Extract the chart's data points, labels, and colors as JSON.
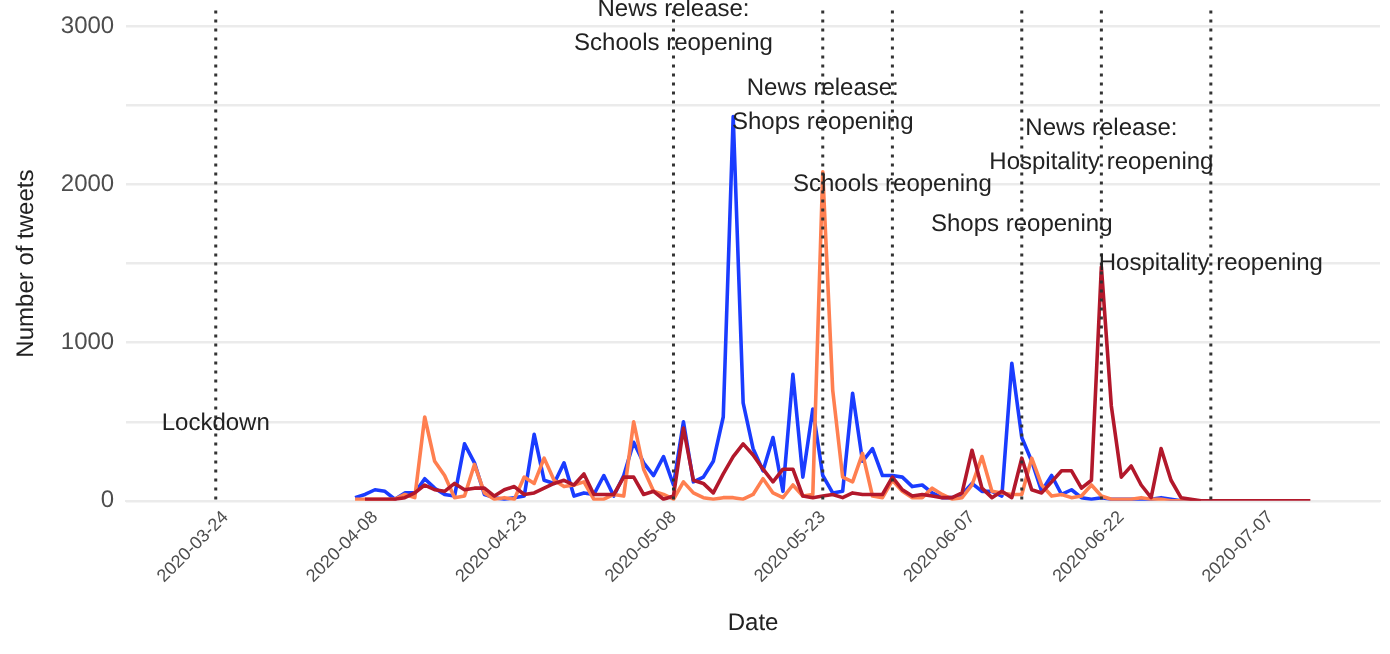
{
  "chart_data": {
    "type": "line",
    "xlabel": "Date",
    "ylabel": "Number of tweets",
    "x": [
      "2020-04-06",
      "2020-04-07",
      "2020-04-08",
      "2020-04-09",
      "2020-04-10",
      "2020-04-11",
      "2020-04-12",
      "2020-04-13",
      "2020-04-14",
      "2020-04-15",
      "2020-04-16",
      "2020-04-17",
      "2020-04-18",
      "2020-04-19",
      "2020-04-20",
      "2020-04-21",
      "2020-04-22",
      "2020-04-23",
      "2020-04-24",
      "2020-04-25",
      "2020-04-26",
      "2020-04-27",
      "2020-04-28",
      "2020-04-29",
      "2020-04-30",
      "2020-05-01",
      "2020-05-02",
      "2020-05-03",
      "2020-05-04",
      "2020-05-05",
      "2020-05-06",
      "2020-05-07",
      "2020-05-08",
      "2020-05-09",
      "2020-05-10",
      "2020-05-11",
      "2020-05-12",
      "2020-05-13",
      "2020-05-14",
      "2020-05-15",
      "2020-05-16",
      "2020-05-17",
      "2020-05-18",
      "2020-05-19",
      "2020-05-20",
      "2020-05-21",
      "2020-05-22",
      "2020-05-23",
      "2020-05-24",
      "2020-05-25",
      "2020-05-26",
      "2020-05-27",
      "2020-05-28",
      "2020-05-29",
      "2020-05-30",
      "2020-05-31",
      "2020-06-01",
      "2020-06-02",
      "2020-06-03",
      "2020-06-04",
      "2020-06-05",
      "2020-06-06",
      "2020-06-07",
      "2020-06-08",
      "2020-06-09",
      "2020-06-10",
      "2020-06-11",
      "2020-06-12",
      "2020-06-13",
      "2020-06-14",
      "2020-06-15",
      "2020-06-16",
      "2020-06-17",
      "2020-06-18",
      "2020-06-19",
      "2020-06-20",
      "2020-06-21",
      "2020-06-22",
      "2020-06-23",
      "2020-06-24",
      "2020-06-25",
      "2020-06-26",
      "2020-06-27",
      "2020-06-28",
      "2020-06-29",
      "2020-06-30",
      "2020-07-01",
      "2020-07-02",
      "2020-07-03",
      "2020-07-04",
      "2020-07-05",
      "2020-07-06",
      "2020-07-07",
      "2020-07-08",
      "2020-07-09",
      "2020-07-10",
      "2020-07-11"
    ],
    "series": [
      {
        "color": "#1a3cff",
        "values": [
          20,
          40,
          70,
          60,
          10,
          50,
          50,
          140,
          80,
          40,
          30,
          360,
          240,
          40,
          20,
          10,
          20,
          30,
          420,
          130,
          110,
          240,
          30,
          50,
          40,
          160,
          30,
          160,
          370,
          240,
          160,
          280,
          100,
          500,
          120,
          150,
          250,
          530,
          2430,
          620,
          330,
          190,
          400,
          60,
          800,
          150,
          580,
          160,
          50,
          60,
          680,
          250,
          330,
          160,
          160,
          150,
          90,
          100,
          50,
          20,
          20,
          40,
          110,
          60,
          60,
          30,
          870,
          400,
          250,
          60,
          160,
          40,
          70,
          20,
          10,
          20,
          10,
          10,
          10,
          10,
          10,
          20,
          10,
          0,
          0,
          0,
          null,
          null,
          null,
          null,
          null,
          null,
          null,
          null,
          null,
          null,
          null
        ]
      },
      {
        "color": "#ff7f50",
        "values": [
          10,
          10,
          10,
          10,
          10,
          40,
          20,
          530,
          250,
          160,
          20,
          30,
          230,
          50,
          10,
          20,
          10,
          150,
          110,
          270,
          130,
          90,
          100,
          120,
          10,
          10,
          40,
          30,
          500,
          200,
          60,
          40,
          10,
          120,
          50,
          20,
          10,
          20,
          20,
          10,
          40,
          140,
          50,
          20,
          100,
          30,
          40,
          2080,
          700,
          150,
          120,
          300,
          30,
          20,
          130,
          60,
          20,
          20,
          80,
          40,
          10,
          20,
          100,
          280,
          60,
          50,
          40,
          40,
          270,
          100,
          30,
          40,
          20,
          30,
          100,
          30,
          10,
          10,
          10,
          20,
          10,
          10,
          0,
          0,
          0,
          0,
          null,
          null,
          null,
          null,
          null,
          null,
          null,
          null,
          null,
          null,
          null
        ]
      },
      {
        "color": "#b2182b",
        "values": [
          null,
          10,
          10,
          10,
          10,
          20,
          50,
          100,
          70,
          60,
          110,
          70,
          80,
          80,
          30,
          70,
          90,
          40,
          50,
          80,
          110,
          130,
          100,
          170,
          40,
          40,
          40,
          150,
          150,
          40,
          60,
          10,
          30,
          460,
          130,
          110,
          50,
          170,
          280,
          360,
          290,
          200,
          120,
          200,
          200,
          30,
          20,
          30,
          40,
          20,
          50,
          40,
          40,
          40,
          150,
          70,
          30,
          40,
          30,
          20,
          20,
          50,
          320,
          80,
          20,
          60,
          20,
          270,
          70,
          50,
          120,
          190,
          190,
          80,
          130,
          1480,
          600,
          150,
          220,
          100,
          20,
          330,
          130,
          20,
          10,
          0,
          0,
          0,
          0,
          0,
          0,
          0,
          0,
          0,
          0,
          0,
          0
        ]
      }
    ],
    "xlim": [
      "2020-03-14",
      "2020-07-18"
    ],
    "xticks": [
      "2020-03-24",
      "2020-04-08",
      "2020-04-23",
      "2020-05-08",
      "2020-05-23",
      "2020-06-07",
      "2020-06-22",
      "2020-07-07"
    ],
    "ylim": [
      0,
      3000
    ],
    "yticks": [
      0,
      {
        "value": 500,
        "label": null
      },
      1000,
      {
        "value": 1500,
        "label": null
      },
      2000,
      {
        "value": 2500,
        "label": null
      },
      3000
    ],
    "grid": "y",
    "legend": false,
    "marker": "none",
    "line_style": "solid",
    "ref_lines": [
      {
        "axis": "x",
        "value": "2020-03-23",
        "line_style": "dotted",
        "color": "#333333"
      },
      {
        "axis": "x",
        "value": "2020-05-08",
        "line_style": "dotted",
        "color": "#333333"
      },
      {
        "axis": "x",
        "value": "2020-05-23",
        "line_style": "dotted",
        "color": "#333333"
      },
      {
        "axis": "x",
        "value": "2020-05-30",
        "line_style": "dotted",
        "color": "#333333"
      },
      {
        "axis": "x",
        "value": "2020-06-12",
        "line_style": "dotted",
        "color": "#333333"
      },
      {
        "axis": "x",
        "value": "2020-06-20",
        "line_style": "dotted",
        "color": "#333333"
      },
      {
        "axis": "x",
        "value": "2020-07-01",
        "line_style": "dotted",
        "color": "#333333"
      }
    ],
    "annotations": [
      {
        "text": "Lockdown",
        "x": "2020-03-23",
        "y": 490
      },
      {
        "text": "News release:\nSchools reopening",
        "x": "2020-05-08",
        "y": 3000
      },
      {
        "text": "News release:\nShops reopening",
        "x": "2020-05-23",
        "y": 2500
      },
      {
        "text": "Schools reopening",
        "x": "2020-05-30",
        "y": 2000
      },
      {
        "text": "Shops reopening",
        "x": "2020-06-12",
        "y": 1750
      },
      {
        "text": "News release:\nHospitality reopening",
        "x": "2020-06-20",
        "y": 2250
      },
      {
        "text": "Hospitality reopening",
        "x": "2020-07-01",
        "y": 1500
      }
    ]
  }
}
